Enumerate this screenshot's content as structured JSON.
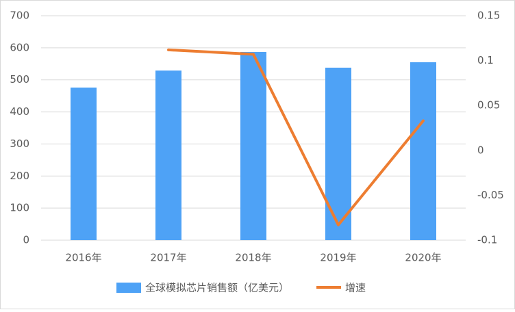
{
  "chart_data": {
    "type": "bar-line",
    "categories": [
      "2016年",
      "2017年",
      "2018年",
      "2019年",
      "2020年"
    ],
    "series": [
      {
        "name": "全球模拟芯片销售额（亿美元）",
        "color": "#4ea2f6",
        "type": "bar",
        "values": [
          476,
          529,
          587,
          538,
          555
        ]
      },
      {
        "name": "增速",
        "color": "#ed7d31",
        "type": "line",
        "axis": "y2",
        "values": [
          null,
          0.112,
          0.107,
          -0.083,
          0.033
        ]
      }
    ],
    "ylim": [
      0,
      700
    ],
    "yticks": [
      0,
      100,
      200,
      300,
      400,
      500,
      600,
      700
    ],
    "y2lim": [
      -0.1,
      0.15
    ],
    "y2ticks": [
      -0.1,
      -0.05,
      0,
      0.05,
      0.1,
      0.15
    ],
    "grid": true,
    "legend": "bottom"
  }
}
